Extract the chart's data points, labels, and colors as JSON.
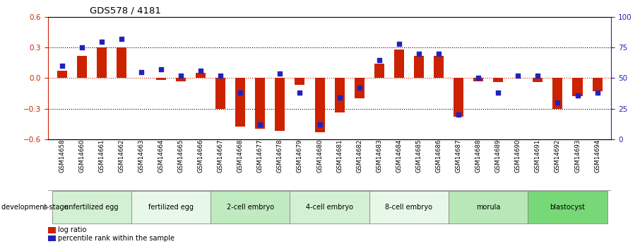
{
  "title": "GDS578 / 4181",
  "samples": [
    "GSM14658",
    "GSM14660",
    "GSM14661",
    "GSM14662",
    "GSM14663",
    "GSM14664",
    "GSM14665",
    "GSM14666",
    "GSM14667",
    "GSM14668",
    "GSM14677",
    "GSM14678",
    "GSM14679",
    "GSM14680",
    "GSM14681",
    "GSM14682",
    "GSM14683",
    "GSM14684",
    "GSM14685",
    "GSM14686",
    "GSM14687",
    "GSM14688",
    "GSM14689",
    "GSM14690",
    "GSM14691",
    "GSM14692",
    "GSM14693",
    "GSM14694"
  ],
  "log_ratio": [
    0.07,
    0.22,
    0.3,
    0.3,
    0.0,
    -0.02,
    -0.03,
    0.05,
    -0.3,
    -0.48,
    -0.5,
    -0.52,
    -0.07,
    -0.53,
    -0.34,
    -0.2,
    0.14,
    0.28,
    0.22,
    0.22,
    -0.38,
    -0.03,
    -0.04,
    0.0,
    -0.04,
    -0.3,
    -0.18,
    -0.13
  ],
  "percentile_rank": [
    60,
    75,
    80,
    82,
    55,
    57,
    52,
    56,
    52,
    38,
    12,
    54,
    38,
    12,
    34,
    42,
    65,
    78,
    70,
    70,
    20,
    50,
    38,
    52,
    52,
    30,
    36,
    38
  ],
  "stages": [
    {
      "label": "unfertilized egg",
      "start": 0,
      "end": 4,
      "color": "#d4f0d4"
    },
    {
      "label": "fertilized egg",
      "start": 4,
      "end": 8,
      "color": "#e8f8e8"
    },
    {
      "label": "2-cell embryo",
      "start": 8,
      "end": 12,
      "color": "#c0eac0"
    },
    {
      "label": "4-cell embryo",
      "start": 12,
      "end": 16,
      "color": "#d4f0d4"
    },
    {
      "label": "8-cell embryo",
      "start": 16,
      "end": 20,
      "color": "#e8f8e8"
    },
    {
      "label": "morula",
      "start": 20,
      "end": 24,
      "color": "#b8e8b8"
    },
    {
      "label": "blastocyst",
      "start": 24,
      "end": 28,
      "color": "#78d878"
    }
  ],
  "bar_color": "#cc2200",
  "dot_color": "#2222bb",
  "ylim_left": [
    -0.6,
    0.6
  ],
  "ylim_right": [
    0,
    100
  ],
  "y_ticks_left": [
    -0.6,
    -0.3,
    0.0,
    0.3,
    0.6
  ],
  "y_ticks_right": [
    0,
    25,
    50,
    75,
    100
  ],
  "dotted_lines_black": [
    -0.3,
    0.3
  ],
  "zero_line_color": "#cc2200",
  "left_axis_color": "#cc2200",
  "right_axis_color": "#2222bb"
}
